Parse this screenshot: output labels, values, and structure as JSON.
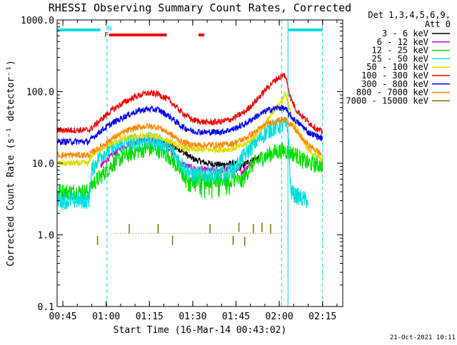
{
  "chart_data": {
    "type": "line",
    "title": "RHESSI Observing Summary Count Rates, Corrected",
    "xlabel": "Start Time (16-Mar-14 00:43:02)",
    "ylabel": "Corrected Count Rate (s⁻¹ detector⁻¹)",
    "yscale": "log",
    "ylim": [
      0.1,
      1000.0
    ],
    "xlim_minutes": [
      43.0,
      142.0
    ],
    "x_unit": "minutes after 00:00 UT",
    "x_ticks": [
      {
        "label": "00:45",
        "t": 45
      },
      {
        "label": "01:00",
        "t": 60
      },
      {
        "label": "01:15",
        "t": 75
      },
      {
        "label": "01:30",
        "t": 90
      },
      {
        "label": "01:45",
        "t": 105
      },
      {
        "label": "02:00",
        "t": 120
      },
      {
        "label": "02:15",
        "t": 135
      }
    ],
    "y_ticks": [
      {
        "label": "0.1",
        "v": 0.1
      },
      {
        "label": "1.0",
        "v": 1.0
      },
      {
        "label": "10.0",
        "v": 10.0
      },
      {
        "label": "100.0",
        "v": 100.0
      },
      {
        "label": "1000.0",
        "v": 1000.0
      }
    ],
    "legend": {
      "header": [
        "Det 1,3,4,5,6,9,",
        "Att 0"
      ],
      "placement": "right"
    },
    "series": [
      {
        "name": "3 - 6 keV",
        "color": "#000000",
        "points": [
          [
            78,
            21
          ],
          [
            85,
            16
          ],
          [
            90,
            11.5
          ],
          [
            95,
            10
          ],
          [
            100,
            9.5
          ],
          [
            104,
            10
          ],
          [
            107,
            9
          ],
          [
            110,
            11
          ],
          [
            113,
            12
          ]
        ]
      },
      {
        "name": "6 - 12 keV",
        "color": "#cc00cc",
        "points": [
          [
            58,
            9
          ],
          [
            60,
            11
          ],
          [
            64,
            15
          ],
          [
            68,
            19
          ],
          [
            72,
            21
          ],
          [
            75,
            22
          ],
          [
            78,
            20
          ],
          [
            82,
            16
          ],
          [
            86,
            10
          ],
          [
            90,
            8.5
          ],
          [
            95,
            8
          ],
          [
            100,
            8
          ],
          [
            104,
            8.5
          ],
          [
            107,
            7.5
          ],
          [
            110,
            10
          ]
        ]
      },
      {
        "name": "12 - 25 keV",
        "color": "#00dd00",
        "points": [
          [
            43,
            4
          ],
          [
            54,
            4
          ],
          [
            55,
            5
          ],
          [
            58,
            6.5
          ],
          [
            62,
            9.5
          ],
          [
            66,
            12.5
          ],
          [
            70,
            14.5
          ],
          [
            74,
            16
          ],
          [
            78,
            15.5
          ],
          [
            82,
            12.5
          ],
          [
            86,
            7.5
          ],
          [
            90,
            6
          ],
          [
            95,
            6
          ],
          [
            100,
            6
          ],
          [
            104,
            6.2
          ],
          [
            107,
            5.5
          ],
          [
            110,
            9
          ],
          [
            114,
            12
          ],
          [
            118,
            14
          ],
          [
            121,
            15
          ],
          [
            122,
            15
          ],
          [
            124,
            14
          ],
          [
            126,
            13
          ],
          [
            128,
            11
          ],
          [
            130,
            10
          ],
          [
            133,
            9.5
          ],
          [
            135,
            9.5
          ]
        ]
      },
      {
        "name": "25 - 50 keV",
        "color": "#00dddd",
        "points": [
          [
            43,
            3
          ],
          [
            54,
            3
          ],
          [
            55,
            8
          ],
          [
            58,
            13
          ],
          [
            62,
            16
          ],
          [
            66,
            18.5
          ],
          [
            70,
            20
          ],
          [
            74,
            21
          ],
          [
            78,
            20
          ],
          [
            82,
            16.5
          ],
          [
            86,
            10
          ],
          [
            88,
            8
          ],
          [
            90,
            7
          ],
          [
            95,
            7
          ],
          [
            100,
            7
          ],
          [
            104,
            8
          ],
          [
            108,
            13
          ],
          [
            112,
            20
          ],
          [
            116,
            28
          ],
          [
            120,
            33
          ],
          [
            122,
            35
          ],
          [
            123,
            30
          ],
          [
            124,
            4
          ],
          [
            126,
            3.5
          ],
          [
            128,
            3.2
          ],
          [
            130,
            3
          ]
        ]
      },
      {
        "name": "50 - 100 keV",
        "color": "#dddd00",
        "points": [
          [
            43,
            10
          ],
          [
            54,
            10
          ],
          [
            55,
            13
          ],
          [
            58,
            16
          ],
          [
            62,
            19
          ],
          [
            66,
            22
          ],
          [
            70,
            23.5
          ],
          [
            74,
            24.5
          ],
          [
            78,
            23.5
          ],
          [
            82,
            20
          ],
          [
            86,
            16.5
          ],
          [
            90,
            15.5
          ],
          [
            95,
            15.5
          ],
          [
            100,
            15.5
          ],
          [
            104,
            16
          ],
          [
            108,
            18
          ],
          [
            112,
            25
          ],
          [
            116,
            40
          ],
          [
            119,
            60
          ],
          [
            121,
            75
          ],
          [
            122,
            95
          ],
          [
            123,
            70
          ],
          [
            124,
            50
          ],
          [
            126,
            30
          ],
          [
            128,
            22
          ],
          [
            130,
            15
          ],
          [
            133,
            13
          ],
          [
            135,
            11
          ]
        ]
      },
      {
        "name": "100 - 300 keV",
        "color": "#ee0000",
        "points": [
          [
            43,
            29
          ],
          [
            54,
            29
          ],
          [
            55,
            31
          ],
          [
            58,
            40
          ],
          [
            62,
            55
          ],
          [
            66,
            70
          ],
          [
            70,
            85
          ],
          [
            74,
            95
          ],
          [
            78,
            93
          ],
          [
            82,
            75
          ],
          [
            86,
            52
          ],
          [
            90,
            40
          ],
          [
            95,
            37
          ],
          [
            100,
            38
          ],
          [
            104,
            42
          ],
          [
            108,
            52
          ],
          [
            112,
            75
          ],
          [
            116,
            115
          ],
          [
            119,
            150
          ],
          [
            121,
            165
          ],
          [
            122,
            170
          ],
          [
            123,
            120
          ],
          [
            124,
            80
          ],
          [
            126,
            55
          ],
          [
            128,
            45
          ],
          [
            130,
            38
          ],
          [
            133,
            30
          ],
          [
            135,
            27
          ]
        ]
      },
      {
        "name": "300 - 800 keV",
        "color": "#0000ee",
        "points": [
          [
            43,
            20
          ],
          [
            54,
            20
          ],
          [
            55,
            22
          ],
          [
            58,
            28
          ],
          [
            62,
            36
          ],
          [
            66,
            44
          ],
          [
            70,
            52
          ],
          [
            74,
            57
          ],
          [
            78,
            56
          ],
          [
            82,
            45
          ],
          [
            86,
            33
          ],
          [
            90,
            28
          ],
          [
            95,
            27
          ],
          [
            100,
            27.5
          ],
          [
            104,
            30
          ],
          [
            108,
            35
          ],
          [
            112,
            45
          ],
          [
            116,
            55
          ],
          [
            120,
            60
          ],
          [
            122,
            58
          ],
          [
            124,
            45
          ],
          [
            126,
            38
          ],
          [
            128,
            33
          ],
          [
            130,
            27
          ],
          [
            133,
            24
          ],
          [
            135,
            22
          ]
        ]
      },
      {
        "name": "800 - 7000 keV",
        "color": "#ff8800",
        "points": [
          [
            43,
            13
          ],
          [
            54,
            13
          ],
          [
            55,
            14
          ],
          [
            58,
            17
          ],
          [
            62,
            22
          ],
          [
            66,
            27
          ],
          [
            70,
            31
          ],
          [
            74,
            33
          ],
          [
            78,
            32
          ],
          [
            82,
            26
          ],
          [
            86,
            20
          ],
          [
            90,
            18
          ],
          [
            95,
            18
          ],
          [
            100,
            18
          ],
          [
            104,
            19
          ],
          [
            108,
            22
          ],
          [
            112,
            28
          ],
          [
            116,
            36
          ],
          [
            120,
            40
          ],
          [
            122,
            41
          ],
          [
            124,
            35
          ],
          [
            126,
            28
          ],
          [
            128,
            22
          ],
          [
            130,
            18
          ],
          [
            133,
            15
          ],
          [
            135,
            13
          ]
        ]
      },
      {
        "name": "7000 - 15000 keV",
        "color": "#8b6b00",
        "points": [
          [
            57,
            0.72
          ],
          [
            68,
            1.05
          ],
          [
            78,
            1.05
          ],
          [
            83,
            0.72
          ],
          [
            96,
            1.05
          ],
          [
            104,
            0.72
          ],
          [
            106,
            1.1
          ],
          [
            108,
            0.7
          ],
          [
            111,
            1.05
          ],
          [
            114,
            1.1
          ],
          [
            117,
            1.05
          ]
        ]
      }
    ],
    "state_bars": {
      "saa_cyan": [
        [
          43,
          58
        ],
        [
          123,
          135
        ]
      ],
      "flare_red": [
        [
          61,
          81
        ],
        [
          92,
          94
        ]
      ],
      "markers": [
        {
          "text": "F",
          "t": 59.3,
          "color": "#ee0000"
        },
        {
          "text": "N",
          "t": 60.5,
          "color": "#00dddd"
        }
      ]
    },
    "vertical_lines": {
      "solid_cyan": [
        43,
        123
      ],
      "dashed_cyan": [
        60.3,
        120.8,
        135
      ]
    }
  },
  "footer": {
    "date_stamp": "21-Oct-2021 10:11"
  }
}
